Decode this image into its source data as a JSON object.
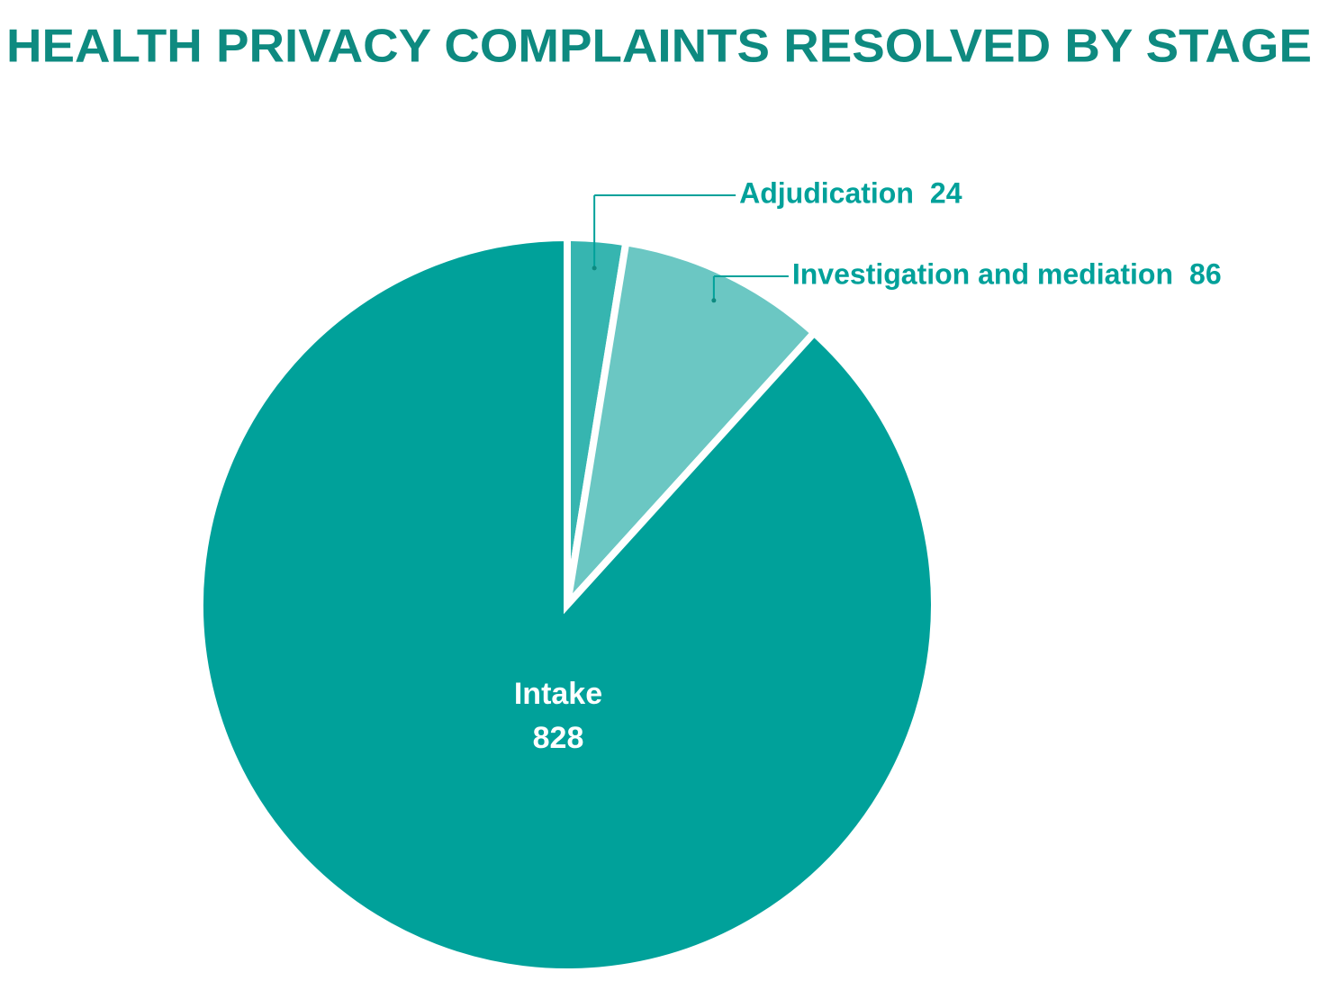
{
  "chart_data": {
    "type": "pie",
    "title": "HEALTH PRIVACY COMPLAINTS RESOLVED BY STAGE",
    "categories": [
      "Adjudication",
      "Investigation and mediation",
      "Intake"
    ],
    "values": [
      24,
      86,
      828
    ],
    "colors": [
      "#36b5b0",
      "#6bc7c3",
      "#00a19a"
    ]
  }
}
